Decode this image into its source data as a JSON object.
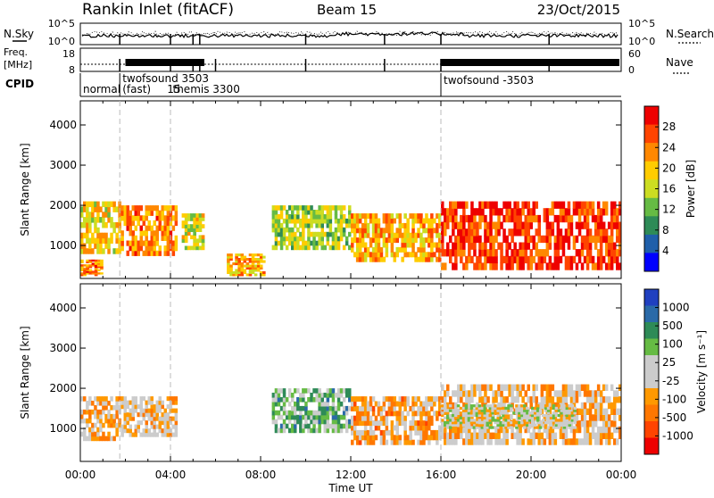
{
  "header": {
    "station": "Rankin Inlet (fitACF)",
    "beam": "Beam 15",
    "date": "23/Oct/2015"
  },
  "status": {
    "nsky_label": "N.Sky",
    "nsearch_label": "N.Search",
    "freq_label": "Freq.",
    "freq_unit": "[MHz]",
    "nave_label": "Nave",
    "cpid_label": "CPID",
    "nsky_ticks": [
      "10^5",
      "10^0"
    ],
    "nsearch_ticks": [
      "10^5",
      "10^0"
    ],
    "freq_ticks": [
      "18",
      "8"
    ],
    "nave_ticks": [
      "60",
      "0"
    ],
    "modes": [
      {
        "label": "normal",
        "t": 0.0
      },
      {
        "label": "twofsound  3503",
        "t": 1.75
      },
      {
        "label": "(fast)",
        "t": 1.75
      },
      {
        "label": "15",
        "t": 3.85
      },
      {
        "label": "themis 3300",
        "t": 4.1
      },
      {
        "label": "twofsound  -3503",
        "t": 16.0
      }
    ]
  },
  "colors": {
    "power_scale": [
      "#0000ff",
      "#1f5faa",
      "#2e8b57",
      "#66bb44",
      "#ccdd22",
      "#ffcc00",
      "#ff8800",
      "#ff4400",
      "#ee0000"
    ],
    "velocity_scale": [
      "#2040c0",
      "#2a6aa8",
      "#2e8b57",
      "#66bb44",
      "#cccccc",
      "#cccccc",
      "#ff9900",
      "#ff7700",
      "#ff4400",
      "#ee0000"
    ]
  },
  "chart_data": [
    {
      "type": "heatmap",
      "panel": "power",
      "xlabel": "",
      "ylabel": "Slant Range [km]",
      "xlim": [
        0,
        24
      ],
      "ylim": [
        180,
        4600
      ],
      "yticks": [
        1000,
        2000,
        3000,
        4000
      ],
      "colorbar": {
        "label": "Power [dB]",
        "ticks": [
          "28",
          "24",
          "20",
          "16",
          "12",
          "8",
          "4"
        ],
        "range": [
          0,
          30
        ]
      },
      "mode_change_hours": [
        1.75,
        4.0,
        16.0
      ],
      "regions": [
        {
          "t0": 0.0,
          "t1": 1.8,
          "r0": 800,
          "r1": 2100,
          "value": 18
        },
        {
          "t0": 0.0,
          "t1": 1.0,
          "r0": 250,
          "r1": 650,
          "value": 22
        },
        {
          "t0": 1.8,
          "t1": 4.3,
          "r0": 750,
          "r1": 2000,
          "value": 22
        },
        {
          "t0": 4.5,
          "t1": 5.5,
          "r0": 900,
          "r1": 1800,
          "value": 16
        },
        {
          "t0": 6.5,
          "t1": 8.2,
          "r0": 250,
          "r1": 800,
          "value": 20
        },
        {
          "t0": 8.5,
          "t1": 12.0,
          "r0": 900,
          "r1": 2000,
          "value": 14
        },
        {
          "t0": 12.0,
          "t1": 16.0,
          "r0": 600,
          "r1": 1800,
          "value": 20
        },
        {
          "t0": 16.0,
          "t1": 24.0,
          "r0": 400,
          "r1": 2100,
          "value": 26
        }
      ]
    },
    {
      "type": "heatmap",
      "panel": "velocity",
      "xlabel": "Time UT",
      "ylabel": "Slant Range [km]",
      "xlim": [
        0,
        24
      ],
      "ylim": [
        180,
        4600
      ],
      "yticks": [
        1000,
        2000,
        3000,
        4000
      ],
      "xticks": [
        "00:00",
        "04:00",
        "08:00",
        "12:00",
        "16:00",
        "20:00",
        "00:00"
      ],
      "colorbar": {
        "label": "Velocity [m s⁻¹]",
        "ticks": [
          "1000",
          "500",
          "100",
          "25",
          "-25",
          "-100",
          "-500",
          "-1000"
        ],
        "range": [
          -1000,
          1000
        ]
      },
      "mode_change_hours": [
        1.75,
        4.0,
        16.0
      ],
      "regions": [
        {
          "t0": 0.0,
          "t1": 1.8,
          "r0": 700,
          "r1": 1800,
          "value": -200
        },
        {
          "t0": 1.8,
          "t1": 4.3,
          "r0": 800,
          "r1": 1800,
          "value": -150
        },
        {
          "t0": 8.5,
          "t1": 12.0,
          "r0": 900,
          "r1": 2000,
          "value": 300
        },
        {
          "t0": 12.0,
          "t1": 16.0,
          "r0": 600,
          "r1": 1800,
          "value": -300
        },
        {
          "t0": 16.0,
          "t1": 24.0,
          "r0": 600,
          "r1": 2100,
          "value": -200
        },
        {
          "t0": 16.0,
          "t1": 22.0,
          "r0": 1000,
          "r1": 1600,
          "value": 0
        }
      ]
    }
  ]
}
